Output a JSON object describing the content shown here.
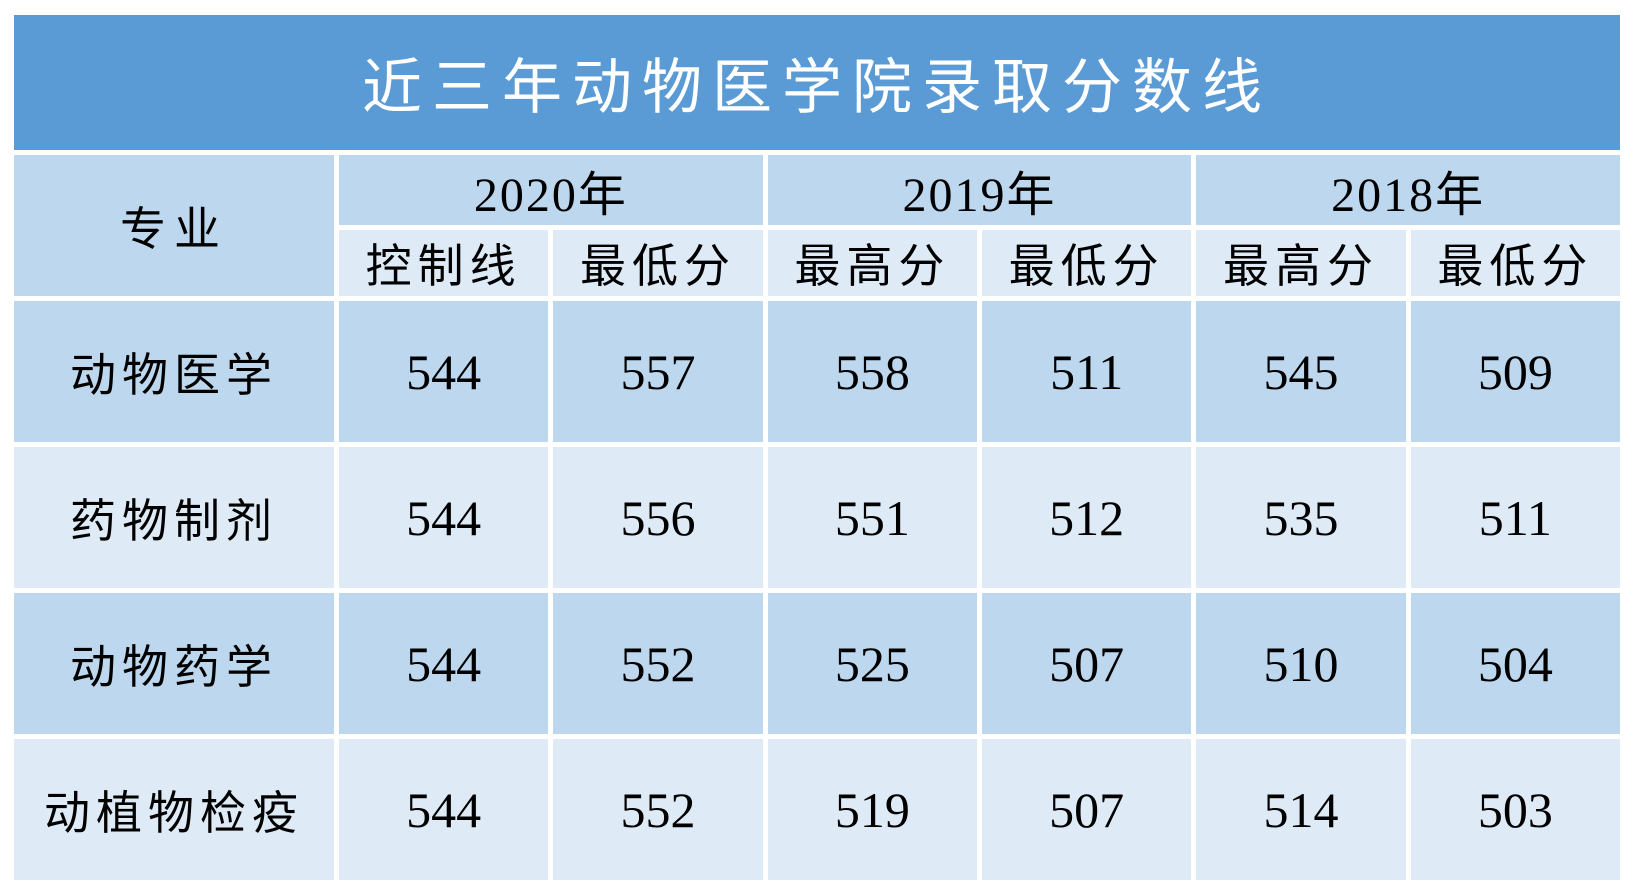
{
  "table": {
    "title": "近三年动物医学院录取分数线",
    "header": {
      "major_label": "专业",
      "groups": [
        {
          "year": "2020年",
          "sub1": "控制线",
          "sub2": "最低分"
        },
        {
          "year": "2019年",
          "sub1": "最高分",
          "sub2": "最低分"
        },
        {
          "year": "2018年",
          "sub1": "最高分",
          "sub2": "最低分"
        }
      ]
    },
    "rows": [
      {
        "major": "动物医学",
        "v": [
          "544",
          "557",
          "558",
          "511",
          "545",
          "509"
        ]
      },
      {
        "major": "药物制剂",
        "v": [
          "544",
          "556",
          "551",
          "512",
          "535",
          "511"
        ]
      },
      {
        "major": "动物药学",
        "v": [
          "544",
          "552",
          "525",
          "507",
          "510",
          "504"
        ]
      },
      {
        "major": "动植物检疫",
        "v": [
          "544",
          "552",
          "519",
          "507",
          "514",
          "503"
        ]
      }
    ],
    "colors": {
      "title_bg": "#5b9bd5",
      "title_text": "#ffffff",
      "band_medium": "#bdd7ee",
      "band_light": "#deebf7",
      "cell_text": "#000000",
      "page_bg": "#ffffff"
    }
  },
  "chart_data": {
    "type": "table",
    "title": "近三年动物医学院录取分数线",
    "columns": [
      "专业",
      "2020年 控制线",
      "2020年 最低分",
      "2019年 最高分",
      "2019年 最低分",
      "2018年 最高分",
      "2018年 最低分"
    ],
    "rows": [
      [
        "动物医学",
        544,
        557,
        558,
        511,
        545,
        509
      ],
      [
        "药物制剂",
        544,
        556,
        551,
        512,
        535,
        511
      ],
      [
        "动物药学",
        544,
        552,
        525,
        507,
        510,
        504
      ],
      [
        "动植物检疫",
        544,
        552,
        519,
        507,
        514,
        503
      ]
    ],
    "layout": {
      "banded_rows": true,
      "header_levels": 2,
      "grid": "white-separators"
    }
  }
}
